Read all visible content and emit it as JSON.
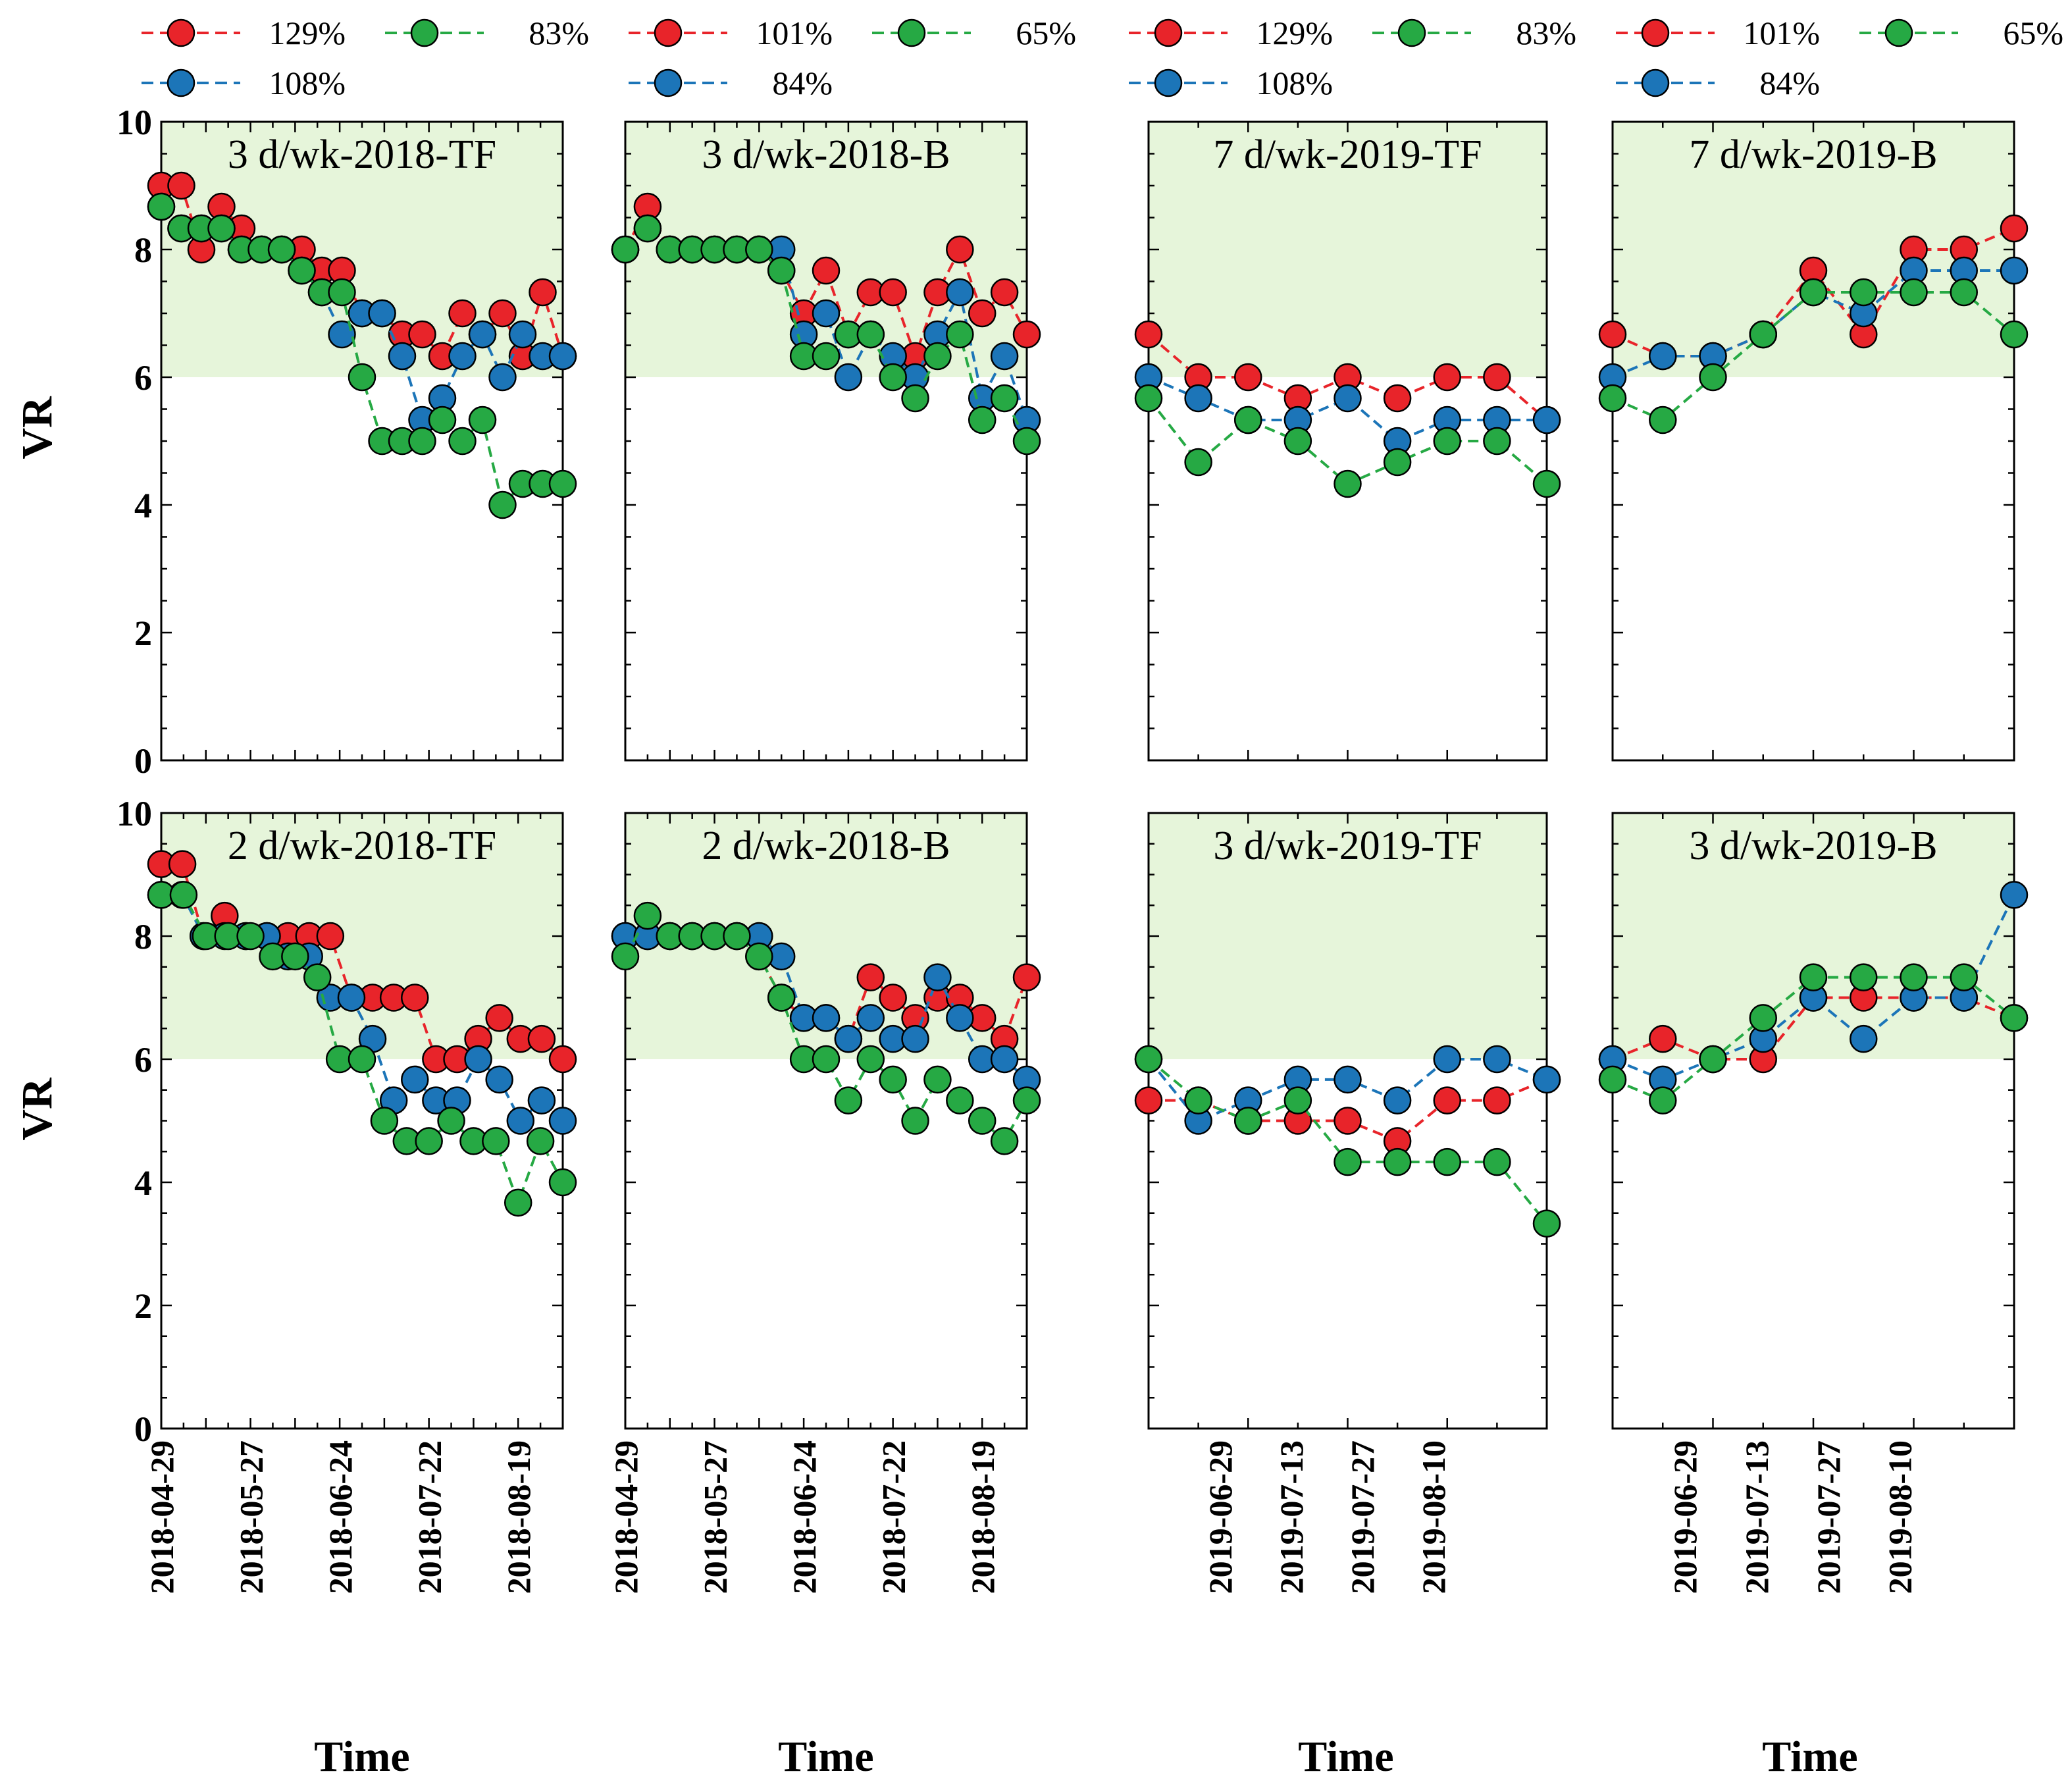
{
  "chart_data": {
    "type": "line",
    "ylabel": "VR",
    "xlabel": "Time",
    "ylim": [
      0,
      10
    ],
    "yticks": [
      0,
      2,
      4,
      6,
      8,
      10
    ],
    "shaded_band": {
      "from": 6,
      "to": 10,
      "color": "#e6f5da"
    },
    "colors": {
      "red": "#e8242a",
      "green": "#26a944",
      "blue": "#1c75b8"
    },
    "legend_left": [
      {
        "label": "129%",
        "color": "red"
      },
      {
        "label": "83%",
        "color": "green"
      },
      {
        "label": "108%",
        "color": "blue"
      },
      {
        "label": "101%",
        "color": "red"
      },
      {
        "label": "65%",
        "color": "green"
      },
      {
        "label": "84%",
        "color": "blue"
      }
    ],
    "legend_right": [
      {
        "label": "129%",
        "color": "red"
      },
      {
        "label": "83%",
        "color": "green"
      },
      {
        "label": "108%",
        "color": "blue"
      },
      {
        "label": "101%",
        "color": "red"
      },
      {
        "label": "65%",
        "color": "green"
      },
      {
        "label": "84%",
        "color": "blue"
      }
    ],
    "date_ticks_2018": [
      "2018-04-29",
      "2018-05-27",
      "2018-06-24",
      "2018-07-22",
      "2018-08-19"
    ],
    "date_ticks_2019": [
      "2019-06-29",
      "2019-07-13",
      "2019-07-27",
      "2019-08-10"
    ],
    "panels": [
      {
        "title": "3 d/wk-2018-TF",
        "group": "2018",
        "x_n": 18,
        "series": [
          {
            "color": "red",
            "values": [
              9,
              9,
              8,
              8.67,
              8.33,
              8,
              8,
              8,
              7.67,
              7.67,
              7,
              7,
              6.67,
              6.67,
              6.33,
              7,
              6.67,
              7,
              6.33,
              7.33,
              6.33
            ]
          },
          {
            "color": "blue",
            "values": [
              8.67,
              8.33,
              8.33,
              8.33,
              8,
              8,
              8,
              7.67,
              7.33,
              6.67,
              7,
              7,
              6.33,
              5.33,
              5.67,
              6.33,
              6.67,
              6,
              6.67,
              6.33,
              6.33
            ]
          },
          {
            "color": "green",
            "values": [
              8.67,
              8.33,
              8.33,
              8.33,
              8,
              8,
              8,
              7.67,
              7.33,
              7.33,
              6,
              5,
              5,
              5,
              5.33,
              5,
              5.33,
              4,
              4.33,
              4.33,
              4.33
            ]
          }
        ]
      },
      {
        "title": "3 d/wk-2018-B",
        "group": "2018",
        "x_n": 18,
        "series": [
          {
            "color": "red",
            "values": [
              8,
              8.67,
              8,
              8,
              8,
              8,
              8,
              7.67,
              7,
              7.67,
              6.67,
              7.33,
              7.33,
              6.33,
              7.33,
              8,
              7,
              7.33,
              6.67
            ]
          },
          {
            "color": "blue",
            "values": [
              8,
              8.33,
              8,
              8,
              8,
              8,
              8,
              8,
              6.67,
              7,
              6,
              6.67,
              6.33,
              6,
              6.67,
              7.33,
              5.67,
              6.33,
              5.33
            ]
          },
          {
            "color": "green",
            "values": [
              8,
              8.33,
              8,
              8,
              8,
              8,
              8,
              7.67,
              6.33,
              6.33,
              6.67,
              6.67,
              6,
              5.67,
              6.33,
              6.67,
              5.33,
              5.67,
              5
            ]
          }
        ]
      },
      {
        "title": "7 d/wk-2019-TF",
        "group": "2019",
        "x_n": 8,
        "series": [
          {
            "color": "red",
            "values": [
              6.67,
              6,
              6,
              5.67,
              6,
              5.67,
              6,
              6,
              5.33
            ]
          },
          {
            "color": "blue",
            "values": [
              6,
              5.67,
              5.33,
              5.33,
              5.67,
              5,
              5.33,
              5.33,
              5.33
            ]
          },
          {
            "color": "green",
            "values": [
              5.67,
              4.67,
              5.33,
              5,
              4.33,
              4.67,
              5,
              5,
              4.33
            ]
          }
        ]
      },
      {
        "title": "7 d/wk-2019-B",
        "group": "2019",
        "x_n": 8,
        "series": [
          {
            "color": "red",
            "values": [
              6.67,
              6.33,
              6.33,
              6.67,
              7.67,
              6.67,
              8,
              8,
              8.33
            ]
          },
          {
            "color": "blue",
            "values": [
              6,
              6.33,
              6.33,
              6.67,
              7.33,
              7,
              7.67,
              7.67,
              7.67
            ]
          },
          {
            "color": "green",
            "values": [
              5.67,
              5.33,
              6,
              6.67,
              7.33,
              7.33,
              7.33,
              7.33,
              6.67
            ]
          }
        ]
      },
      {
        "title": "2 d/wk-2018-TF",
        "group": "2018",
        "x_n": 18,
        "series": [
          {
            "color": "red",
            "values": [
              9.17,
              9.17,
              8,
              8.33,
              8,
              8,
              8,
              8,
              8,
              7,
              7,
              7,
              7,
              6,
              6,
              6.33,
              6.67,
              6.33,
              6.33,
              6
            ]
          },
          {
            "color": "blue",
            "values": [
              8.67,
              8.67,
              8,
              8,
              8,
              8,
              7.67,
              7.67,
              7,
              7,
              6.33,
              5.33,
              5.67,
              5.33,
              5.33,
              6,
              5.67,
              5,
              5.33,
              5
            ]
          },
          {
            "color": "green",
            "values": [
              8.67,
              8.67,
              8,
              8,
              8,
              7.67,
              7.67,
              7.33,
              6,
              6,
              5,
              4.67,
              4.67,
              5,
              4.67,
              4.67,
              3.67,
              4.67,
              4
            ]
          }
        ]
      },
      {
        "title": "2 d/wk-2018-B",
        "group": "2018",
        "x_n": 18,
        "series": [
          {
            "color": "red",
            "values": [
              8,
              8,
              8,
              8,
              8,
              8,
              7.67,
              7,
              6.67,
              6.67,
              6.33,
              7.33,
              7,
              6.67,
              7,
              7,
              6.67,
              6.33,
              7.33
            ]
          },
          {
            "color": "blue",
            "values": [
              8,
              8,
              8,
              8,
              8,
              8,
              8,
              7.67,
              6.67,
              6.67,
              6.33,
              6.67,
              6.33,
              6.33,
              7.33,
              6.67,
              6,
              6,
              5.67
            ]
          },
          {
            "color": "green",
            "values": [
              7.67,
              8.33,
              8,
              8,
              8,
              8,
              7.67,
              7,
              6,
              6,
              5.33,
              6,
              5.67,
              5,
              5.67,
              5.33,
              5,
              4.67,
              5.33
            ]
          }
        ]
      },
      {
        "title": "3 d/wk-2019-TF",
        "group": "2019",
        "x_n": 8,
        "series": [
          {
            "color": "red",
            "values": [
              5.33,
              5.33,
              5,
              5,
              5,
              4.67,
              5.33,
              5.33,
              5.67
            ]
          },
          {
            "color": "blue",
            "values": [
              6,
              5,
              5.33,
              5.67,
              5.67,
              5.33,
              6,
              6,
              5.67
            ]
          },
          {
            "color": "green",
            "values": [
              6,
              5.33,
              5,
              5.33,
              4.33,
              4.33,
              4.33,
              4.33,
              3.33
            ]
          }
        ]
      },
      {
        "title": "3 d/wk-2019-B",
        "group": "2019",
        "x_n": 8,
        "series": [
          {
            "color": "red",
            "values": [
              6,
              6.33,
              6,
              6,
              7,
              7,
              7,
              7,
              6.67
            ]
          },
          {
            "color": "blue",
            "values": [
              6,
              5.67,
              6,
              6.33,
              7,
              6.33,
              7,
              7,
              8.67
            ]
          },
          {
            "color": "green",
            "values": [
              5.67,
              5.33,
              6,
              6.67,
              7.33,
              7.33,
              7.33,
              7.33,
              6.67
            ]
          }
        ]
      }
    ]
  }
}
